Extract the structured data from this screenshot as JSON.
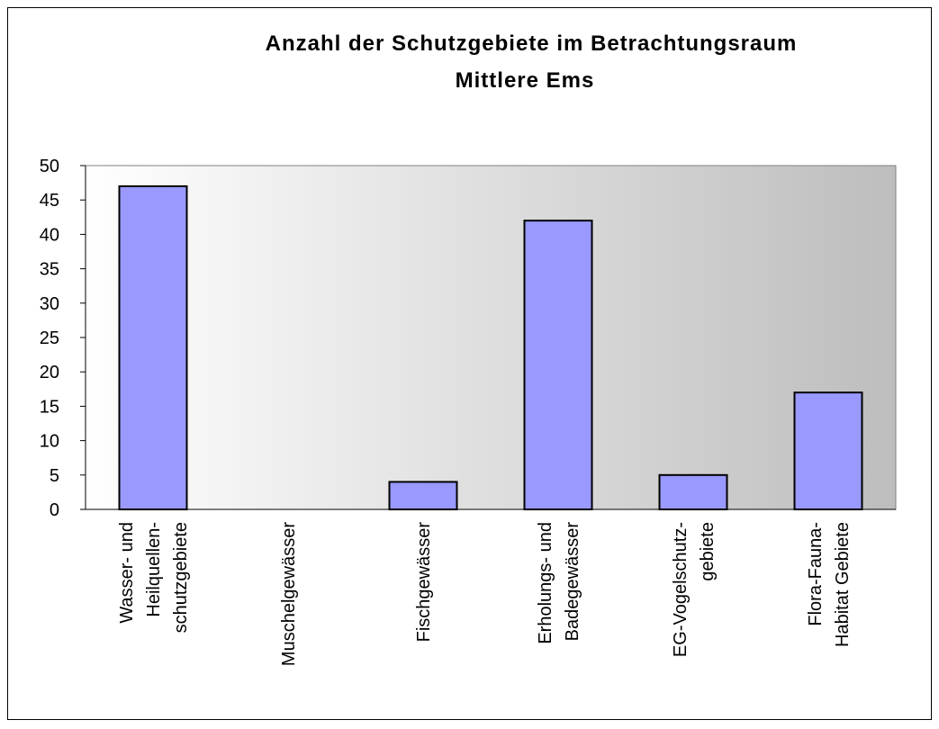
{
  "chart_data": {
    "type": "bar",
    "title": [
      "Anzahl der Schutzgebiete im Betrachtungsraum",
      "Mittlere Ems"
    ],
    "categories": [
      [
        "Wasser- und",
        "Heilquellen-",
        "schutzgebiete"
      ],
      [
        "Muschelgewässer"
      ],
      [
        "Fischgewässer"
      ],
      [
        "Erholungs- und",
        "Badegewässer"
      ],
      [
        "EG-Vogelschutz-",
        "gebiete"
      ],
      [
        "Flora-Fauna-",
        "Habitat Gebiete"
      ]
    ],
    "values": [
      47,
      0,
      4,
      42,
      5,
      17
    ],
    "color": "#9999ff",
    "ylim": [
      0,
      50
    ],
    "yticks": [
      0,
      5,
      10,
      15,
      20,
      25,
      30,
      35,
      40,
      45,
      50
    ],
    "grid": false
  }
}
